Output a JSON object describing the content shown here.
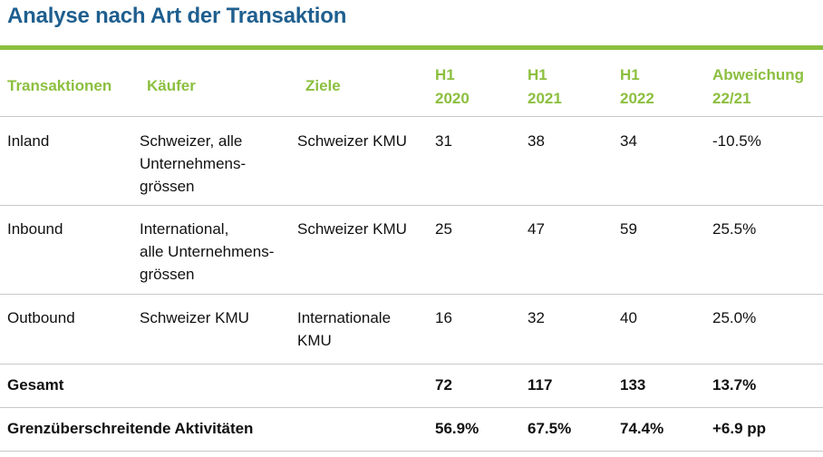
{
  "title": "Analyse nach Art der Transaktion",
  "headers": {
    "transaktionen": "Transaktionen",
    "kaeufer": "Käufer",
    "ziele": "Ziele",
    "h1_2020": [
      "H1",
      "2020"
    ],
    "h1_2021": [
      "H1",
      "2021"
    ],
    "h1_2022": [
      "H1",
      "2022"
    ],
    "abweichung": [
      "Abweichung",
      "22/21"
    ]
  },
  "rows": [
    {
      "transaktion": "Inland",
      "kaeufer": [
        "Schweizer, alle",
        "Unternehmens-",
        "grössen"
      ],
      "ziele": [
        "Schweizer KMU"
      ],
      "h1_2020": "31",
      "h1_2021": "38",
      "h1_2022": "34",
      "abweichung": "-10.5%"
    },
    {
      "transaktion": "Inbound",
      "kaeufer": [
        "International,",
        "alle Unternehmens-",
        "grössen"
      ],
      "ziele": [
        "Schweizer KMU"
      ],
      "h1_2020": "25",
      "h1_2021": "47",
      "h1_2022": "59",
      "abweichung": "25.5%"
    },
    {
      "transaktion": "Outbound",
      "kaeufer": [
        "Schweizer KMU"
      ],
      "ziele": [
        "Internationale",
        "KMU"
      ],
      "h1_2020": "16",
      "h1_2021": "32",
      "h1_2022": "40",
      "abweichung": "25.0%"
    }
  ],
  "total": {
    "label": "Gesamt",
    "h1_2020": "72",
    "h1_2021": "117",
    "h1_2022": "133",
    "abweichung": "13.7%"
  },
  "crossborder": {
    "label": "Grenzüberschreitende Aktivitäten",
    "h1_2020": "56.9%",
    "h1_2021": "67.5%",
    "h1_2022": "74.4%",
    "abweichung": "+6.9 pp"
  },
  "colors": {
    "title": "#1f5f8f",
    "accent": "#8cbf3f",
    "separator": "#c8c8c8"
  }
}
